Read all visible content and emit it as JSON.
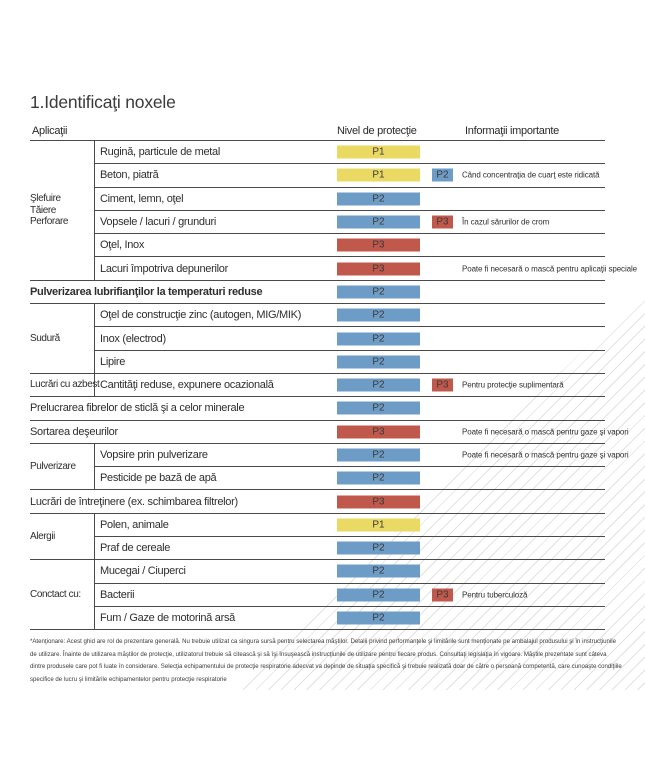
{
  "page": {
    "title": "1.Identificaţi noxele"
  },
  "header": {
    "applications": "Aplicaţii",
    "protection_level": "Nivel de protecţie",
    "important_info": "Informaţii importante"
  },
  "table": {
    "level_colors": {
      "P1": "#ead963",
      "P2": "#6d9cc7",
      "P3": "#c1584c"
    },
    "sections": [
      {
        "type": "group",
        "label_lines": [
          "Şlefuire",
          "Tăiere",
          "Perforare"
        ],
        "rows": [
          {
            "text": "Rugină, particule de metal",
            "level": "P1"
          },
          {
            "text": "Beton, piatră",
            "level": "P1",
            "badge": "P2",
            "note": "Când concentraţia de cuarţ este ridicată"
          },
          {
            "text": "Ciment, lemn, oţel",
            "level": "P2"
          },
          {
            "text": "Vopsele / lacuri / grunduri",
            "level": "P2",
            "badge": "P3",
            "note": "În cazul sărurilor de crom"
          },
          {
            "text": "Oţel, Inox",
            "level": "P3"
          },
          {
            "text": "Lacuri împotriva depunerilor",
            "level": "P3",
            "note": "Poate fi necesară o mască pentru aplicaţii speciale"
          }
        ]
      },
      {
        "type": "full",
        "bold": true,
        "rows": [
          {
            "text": "Pulverizarea lubrifianţilor la temperaturi reduse",
            "level": "P2"
          }
        ]
      },
      {
        "type": "group",
        "label_lines": [
          "Sudură"
        ],
        "rows": [
          {
            "text": "Oţel de construcţie zinc (autogen, MIG/MIK)",
            "level": "P2"
          },
          {
            "text": "Inox (electrod)",
            "level": "P2"
          },
          {
            "text": "Lipire",
            "level": "P2"
          }
        ]
      },
      {
        "type": "group",
        "label_lines": [
          "Lucrări cu azbest"
        ],
        "rows": [
          {
            "text": "Cantităţi reduse, expunere ocazională",
            "level": "P2",
            "badge": "P3",
            "note": "Pentru protecţie suplimentară"
          }
        ]
      },
      {
        "type": "full",
        "rows": [
          {
            "text": "Prelucrarea fibrelor de sticlă şi a celor minerale",
            "level": "P2"
          }
        ]
      },
      {
        "type": "full",
        "rows": [
          {
            "text": "Sortarea deşeurilor",
            "level": "P3",
            "note": "Poate fi necesară o mască pentru gaze şi vapori"
          }
        ]
      },
      {
        "type": "group",
        "label_lines": [
          "Pulverizare"
        ],
        "rows": [
          {
            "text": "Vopsire prin pulverizare",
            "level": "P2",
            "note": "Poate fi necesară o mască pentru gaze şi vapori"
          },
          {
            "text": "Pesticide pe bază de apă",
            "level": "P2"
          }
        ]
      },
      {
        "type": "full",
        "rows": [
          {
            "text": "Lucrări de întreţinere (ex. schimbarea filtrelor)",
            "level": "P3"
          }
        ]
      },
      {
        "type": "group",
        "label_lines": [
          "Alergii"
        ],
        "rows": [
          {
            "text": "Polen, animale",
            "level": "P1"
          },
          {
            "text": "Praf de cereale",
            "level": "P2"
          }
        ]
      },
      {
        "type": "group",
        "label_lines": [
          "Conctact cu:"
        ],
        "rows": [
          {
            "text": "Mucegai / Ciuperci",
            "level": "P2"
          },
          {
            "text": "Bacterii",
            "level": "P2",
            "badge": "P3",
            "note": "Pentru tuberculoză"
          },
          {
            "text": "Fum / Gaze de motorină arsă",
            "level": "P2"
          }
        ]
      }
    ]
  },
  "footnote": {
    "lines": [
      "*Atenţionare: Acest ghid are rol de prezentare generală. Nu trebuie utilizat ca singura sursă pentru selectarea măştilor. Detalii privind performanţele şi limitările sunt menţionate pe ambalajul produsului şi în instrucţiunile",
      "de utilizare. Înainte de utilizarea măştilor de protecţie, utilizatorul trebuie să citească şi să îşi însuşească instrucţiunile de utilizare pentru fiecare produs. Consultaţi legislaţia în vigoare. Măştile prezentate sunt câteva",
      "dintre produsele care pot fi luate în considerare. Selecţia echipamentului de protecţie respiratorie adecvat va depinde de situaţia specifică şi trebuie realizată doar de către o persoană competentă, care cunoaşte condiţiile",
      "specifice de lucru şi limitările echipamentelor pentru protecţie respiratorie"
    ]
  }
}
